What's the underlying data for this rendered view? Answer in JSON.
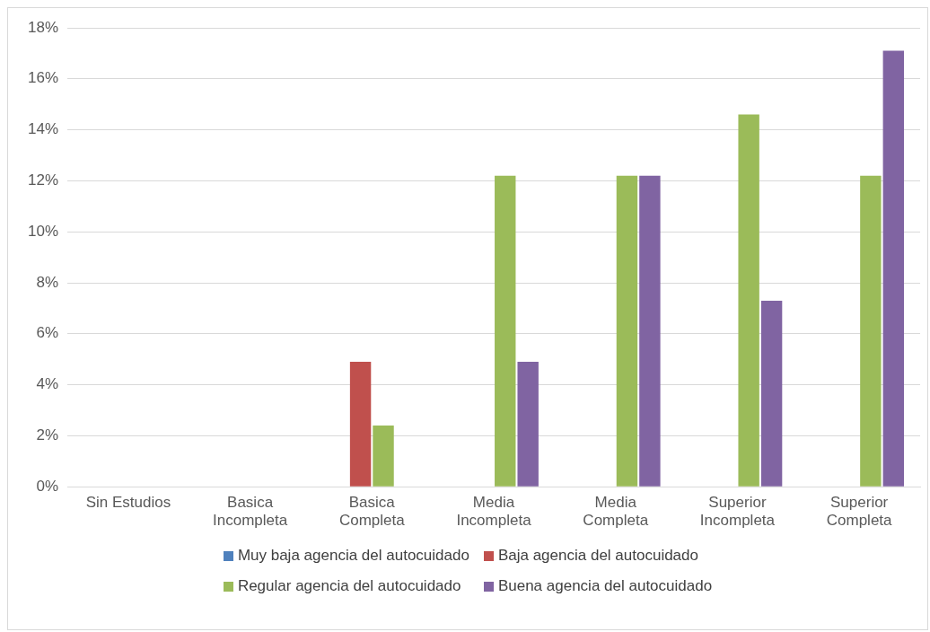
{
  "chart_data": {
    "type": "bar",
    "categories": [
      "Sin Estudios",
      "Basica Incompleta",
      "Basica Completa",
      "Media Incompleta",
      "Media Completa",
      "Superior Incompleta",
      "Superior Completa"
    ],
    "series": [
      {
        "name": "Muy baja agencia del autocuidado",
        "color": "#4f81bd",
        "values": [
          0,
          0,
          0,
          0,
          0,
          0,
          0
        ]
      },
      {
        "name": "Baja agencia del autocuidado",
        "color": "#c0504d",
        "values": [
          0,
          0,
          4.9,
          0,
          0,
          0,
          0
        ]
      },
      {
        "name": "Regular agencia del autocuidado",
        "color": "#9bbb59",
        "values": [
          0,
          0,
          2.4,
          12.2,
          12.2,
          14.6,
          12.2
        ]
      },
      {
        "name": "Buena agencia del autocuidado",
        "color": "#8064a2",
        "values": [
          0,
          0,
          0,
          4.9,
          12.2,
          7.3,
          17.1
        ]
      }
    ],
    "ylim": [
      0,
      18
    ],
    "yticks": [
      {
        "value": 0,
        "label": "0%"
      },
      {
        "value": 2,
        "label": "2%"
      },
      {
        "value": 4,
        "label": "4%"
      },
      {
        "value": 6,
        "label": "6%"
      },
      {
        "value": 8,
        "label": "8%"
      },
      {
        "value": 10,
        "label": "10%"
      },
      {
        "value": 12,
        "label": "12%"
      },
      {
        "value": 14,
        "label": "14%"
      },
      {
        "value": 16,
        "label": "16%"
      },
      {
        "value": 18,
        "label": "18%"
      }
    ],
    "grid": "y",
    "legend": "bottom"
  }
}
